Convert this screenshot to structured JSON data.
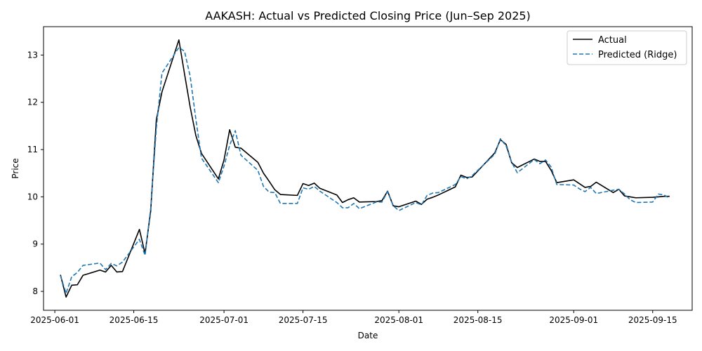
{
  "chart_data": {
    "type": "line",
    "title": "AAKASH: Actual vs Predicted Closing Price (Jun–Sep 2025)",
    "xlabel": "Date",
    "ylabel": "Price",
    "x_range": [
      "2025-05-30",
      "2025-09-22"
    ],
    "ylim": [
      7.6,
      13.6
    ],
    "x_ticks": [
      "2025-06-01",
      "2025-06-15",
      "2025-07-01",
      "2025-07-15",
      "2025-08-01",
      "2025-08-15",
      "2025-09-01",
      "2025-09-15"
    ],
    "y_ticks": [
      8,
      9,
      10,
      11,
      12,
      13
    ],
    "grid": false,
    "legend": {
      "placement": "top-right",
      "entries": [
        "Actual",
        "Predicted (Ridge)"
      ]
    },
    "x": [
      "2025-06-02",
      "2025-06-03",
      "2025-06-04",
      "2025-06-05",
      "2025-06-06",
      "2025-06-09",
      "2025-06-10",
      "2025-06-11",
      "2025-06-12",
      "2025-06-13",
      "2025-06-16",
      "2025-06-17",
      "2025-06-18",
      "2025-06-19",
      "2025-06-20",
      "2025-06-23",
      "2025-06-24",
      "2025-06-25",
      "2025-06-26",
      "2025-06-27",
      "2025-06-30",
      "2025-07-01",
      "2025-07-02",
      "2025-07-03",
      "2025-07-04",
      "2025-07-07",
      "2025-07-08",
      "2025-07-09",
      "2025-07-10",
      "2025-07-11",
      "2025-07-14",
      "2025-07-15",
      "2025-07-16",
      "2025-07-17",
      "2025-07-18",
      "2025-07-21",
      "2025-07-22",
      "2025-07-23",
      "2025-07-24",
      "2025-07-25",
      "2025-07-28",
      "2025-07-29",
      "2025-07-30",
      "2025-07-31",
      "2025-08-01",
      "2025-08-04",
      "2025-08-05",
      "2025-08-06",
      "2025-08-07",
      "2025-08-08",
      "2025-08-11",
      "2025-08-12",
      "2025-08-13",
      "2025-08-14",
      "2025-08-18",
      "2025-08-19",
      "2025-08-20",
      "2025-08-21",
      "2025-08-22",
      "2025-08-25",
      "2025-08-26",
      "2025-08-27",
      "2025-08-28",
      "2025-08-29",
      "2025-09-01",
      "2025-09-02",
      "2025-09-03",
      "2025-09-04",
      "2025-09-05",
      "2025-09-08",
      "2025-09-09",
      "2025-09-10",
      "2025-09-11",
      "2025-09-12",
      "2025-09-15",
      "2025-09-16",
      "2025-09-17",
      "2025-09-18"
    ],
    "series": [
      {
        "name": "Actual",
        "color": "#000000",
        "dash": "solid",
        "values": [
          8.35,
          7.88,
          8.13,
          8.14,
          8.34,
          8.45,
          8.41,
          8.55,
          8.41,
          8.42,
          9.31,
          8.8,
          9.7,
          11.63,
          12.22,
          13.32,
          12.6,
          11.9,
          11.3,
          10.92,
          10.38,
          10.78,
          11.42,
          11.05,
          11.03,
          10.73,
          10.5,
          10.33,
          10.15,
          10.05,
          10.03,
          10.28,
          10.24,
          10.29,
          10.18,
          10.04,
          9.88,
          9.94,
          9.98,
          9.89,
          9.9,
          9.92,
          10.12,
          9.81,
          9.79,
          9.91,
          9.84,
          9.95,
          9.99,
          10.04,
          10.21,
          10.46,
          10.41,
          10.42,
          10.93,
          11.21,
          11.11,
          10.72,
          10.62,
          10.8,
          10.75,
          10.75,
          10.56,
          10.3,
          10.36,
          10.28,
          10.2,
          10.22,
          10.31,
          10.09,
          10.16,
          10.02,
          10.0,
          9.98,
          9.99,
          10.0,
          10.01,
          10.01
        ]
      },
      {
        "name": "Predicted (Ridge)",
        "color": "#1f77b4",
        "dash": "dashed",
        "values": [
          8.33,
          7.96,
          8.31,
          8.4,
          8.55,
          8.6,
          8.46,
          8.59,
          8.54,
          8.62,
          9.1,
          8.76,
          9.76,
          11.45,
          12.62,
          13.16,
          13.08,
          12.55,
          11.65,
          10.82,
          10.3,
          10.65,
          11.09,
          11.4,
          10.88,
          10.56,
          10.22,
          10.1,
          10.09,
          9.86,
          9.86,
          10.19,
          10.16,
          10.22,
          10.12,
          9.88,
          9.77,
          9.77,
          9.86,
          9.75,
          9.89,
          9.89,
          10.11,
          9.81,
          9.71,
          9.88,
          9.83,
          10.03,
          10.08,
          10.09,
          10.26,
          10.43,
          10.38,
          10.45,
          10.9,
          11.23,
          11.08,
          10.73,
          10.51,
          10.79,
          10.7,
          10.78,
          10.63,
          10.26,
          10.25,
          10.17,
          10.11,
          10.2,
          10.07,
          10.14,
          10.16,
          10.06,
          9.94,
          9.88,
          9.89,
          10.06,
          10.04,
          9.97
        ]
      }
    ]
  }
}
